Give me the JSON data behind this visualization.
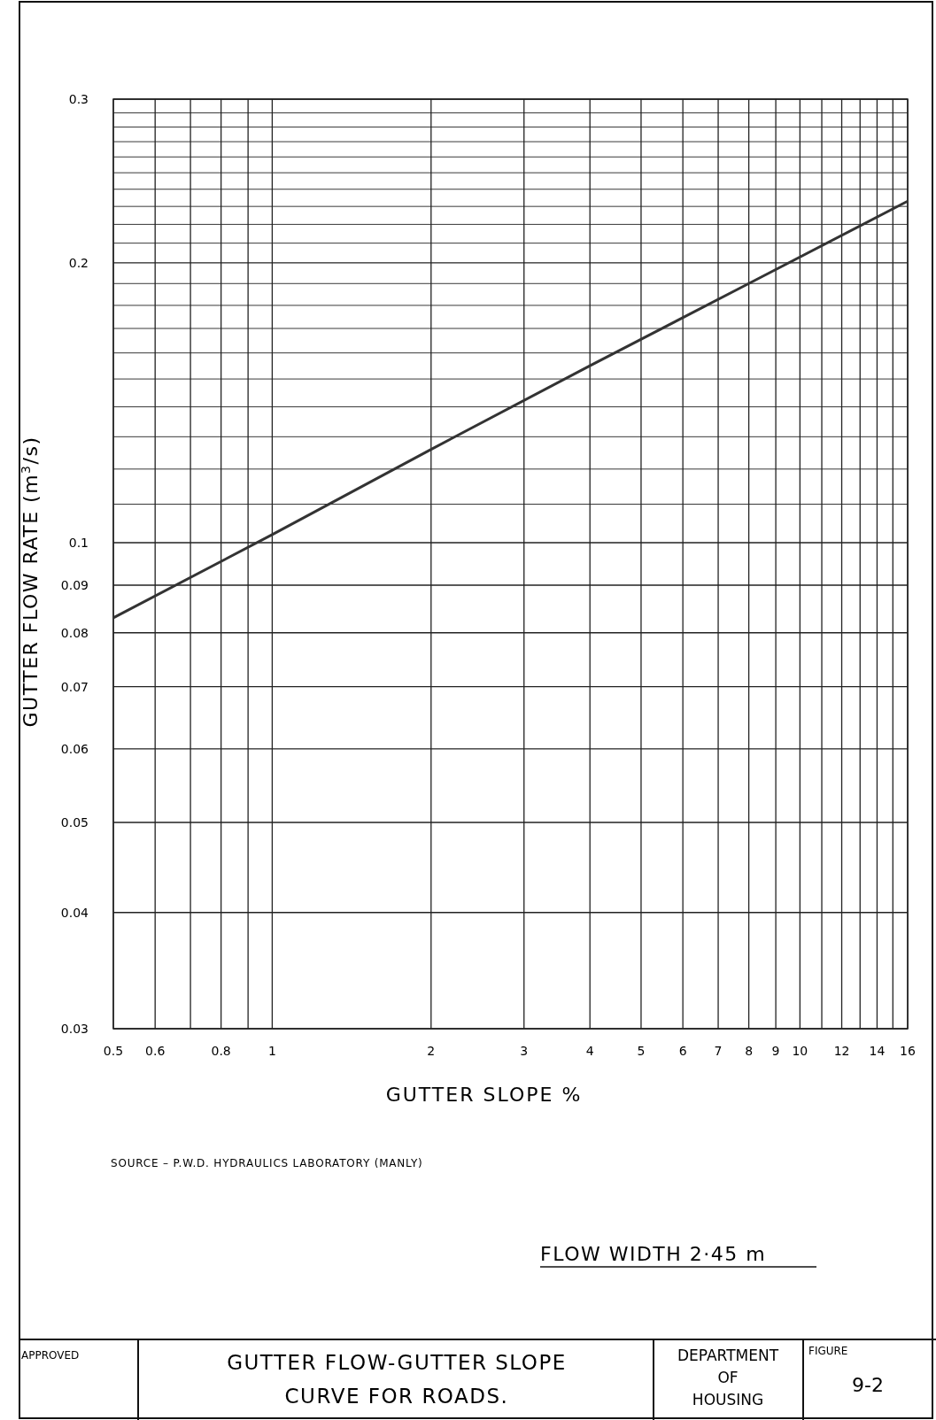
{
  "chart_data": {
    "type": "line",
    "title": "GUTTER FLOW-GUTTER SLOPE CURVE FOR ROADS.",
    "xlabel": "GUTTER SLOPE %",
    "ylabel": "GUTTER FLOW RATE (m$^{3}$/s)",
    "x": [
      0.5,
      1,
      2,
      4,
      8,
      16
    ],
    "series": [
      {
        "color": "#333333",
        "values": [
          0.083,
          0.102,
          0.126,
          0.155,
          0.19,
          0.233
        ]
      }
    ],
    "log": "xy",
    "grid": true,
    "marker": "none",
    "line_style": "solid",
    "xlim": [
      0.5,
      16
    ],
    "ylim": [
      0.03,
      0.3
    ],
    "xticks": [
      0.5,
      0.6,
      {
        "value": 0.7,
        "label": null
      },
      0.8,
      {
        "value": 0.9,
        "label": null
      },
      1,
      2,
      3,
      4,
      5,
      6,
      7,
      8,
      9,
      10,
      {
        "value": 11,
        "label": null
      },
      12,
      {
        "value": 13,
        "label": null
      },
      14,
      {
        "value": 15,
        "label": null
      },
      16
    ],
    "yticks": [
      0.03,
      0.04,
      0.05,
      0.06,
      0.07,
      0.08,
      0.09,
      0.1,
      {
        "value": 0.11,
        "label": null
      },
      {
        "value": 0.12,
        "label": null
      },
      {
        "value": 0.13,
        "label": null
      },
      {
        "value": 0.14,
        "label": null
      },
      {
        "value": 0.15,
        "label": null
      },
      {
        "value": 0.16,
        "label": null
      },
      {
        "value": 0.17,
        "label": null
      },
      {
        "value": 0.18,
        "label": null
      },
      {
        "value": 0.19,
        "label": null
      },
      0.2,
      {
        "value": 0.21,
        "label": null
      },
      {
        "value": 0.22,
        "label": null
      },
      {
        "value": 0.23,
        "label": null
      },
      {
        "value": 0.24,
        "label": null
      },
      {
        "value": 0.25,
        "label": null
      },
      {
        "value": 0.26,
        "label": null
      },
      {
        "value": 0.27,
        "label": null
      },
      {
        "value": 0.28,
        "label": null
      },
      {
        "value": 0.29,
        "label": null
      },
      0.3
    ],
    "annotations": [
      "SOURCE – P.W.D. HYDRAULICS LABORATORY (MANLY)",
      "FLOW WIDTH 2·45 m",
      "APPROVED",
      "DEPARTMENT OF HOUSING",
      "FIGURE",
      "9-2"
    ]
  }
}
